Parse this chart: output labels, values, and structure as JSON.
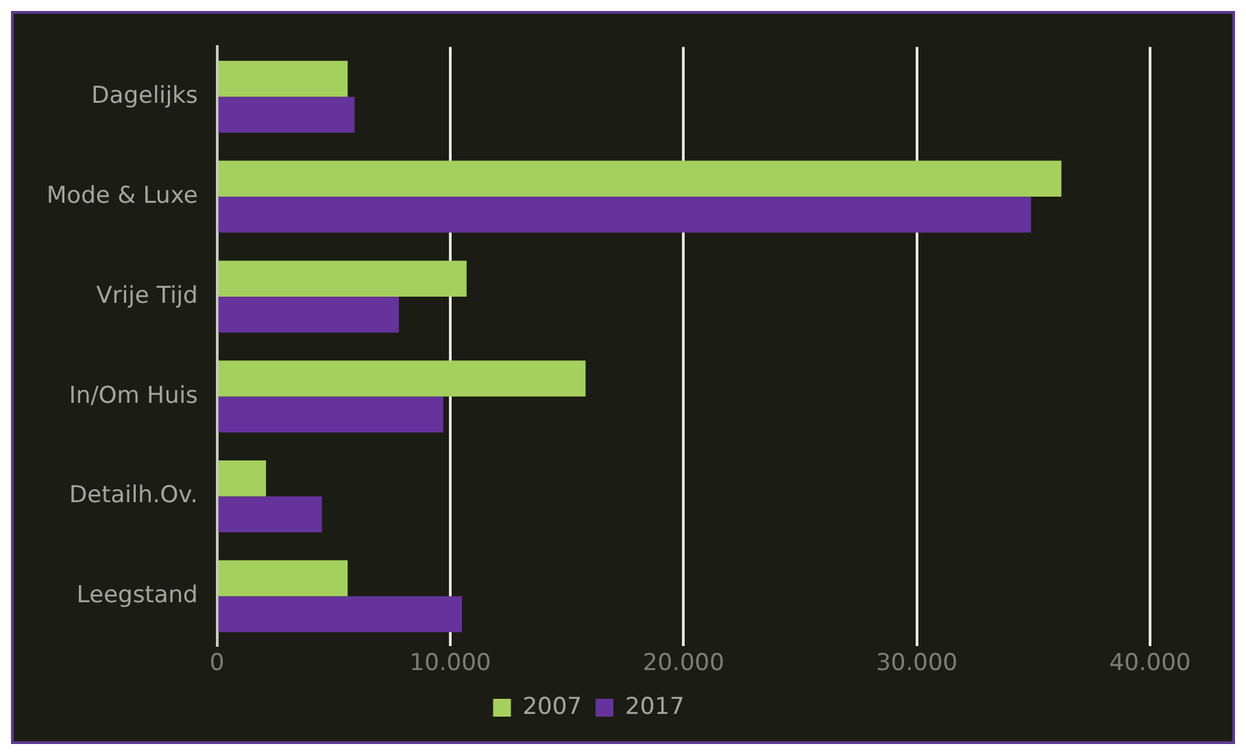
{
  "chart_data": {
    "type": "bar",
    "orientation": "horizontal",
    "categories": [
      "Dagelijks",
      "Mode & Luxe",
      "Vrije Tijd",
      "In/Om Huis",
      "Detailh.Ov.",
      "Leegstand"
    ],
    "series": [
      {
        "name": "2007",
        "color": "#a6d05d",
        "values": [
          5600,
          36200,
          10700,
          15800,
          2100,
          5600
        ]
      },
      {
        "name": "2017",
        "color": "#65339b",
        "values": [
          5900,
          34900,
          7800,
          9700,
          4500,
          10500
        ]
      }
    ],
    "xlim": [
      0,
      40000
    ],
    "xticks": [
      0,
      {
        "value": 10000,
        "label": "10.000"
      },
      {
        "value": 20000,
        "label": "20.000"
      },
      {
        "value": 30000,
        "label": "30.000"
      },
      {
        "value": 40000,
        "label": "40.000"
      }
    ],
    "grid": "x",
    "legend": "bottom"
  }
}
